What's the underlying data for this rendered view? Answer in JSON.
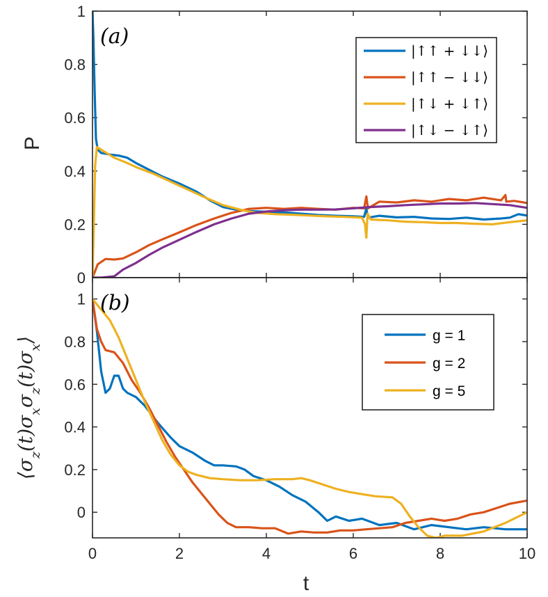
{
  "figure": {
    "x_axis_label": "t",
    "colors": {
      "blue": "#0072BD",
      "orange": "#D95319",
      "yellow": "#EDB120",
      "purple": "#7E2F8E",
      "axis": "#262626"
    }
  },
  "chart_data": [
    {
      "type": "line",
      "panel_tag": "(a)",
      "title": "",
      "xlabel": "t",
      "ylabel": "P",
      "xlim": [
        0,
        10
      ],
      "ylim": [
        0,
        1
      ],
      "x_ticks": [
        "0",
        "2",
        "4",
        "6",
        "8",
        "10"
      ],
      "y_ticks": [
        "0",
        "0.2",
        "0.4",
        "0.6",
        "0.8",
        "1"
      ],
      "legend_position": "top-right",
      "series": [
        {
          "name": "|↑↑ + ↓↓⟩",
          "color": "#0072BD",
          "points": [
            [
              0,
              1.0
            ],
            [
              0.02,
              0.9
            ],
            [
              0.05,
              0.7
            ],
            [
              0.08,
              0.52
            ],
            [
              0.12,
              0.48
            ],
            [
              0.2,
              0.468
            ],
            [
              0.4,
              0.462
            ],
            [
              0.6,
              0.458
            ],
            [
              0.8,
              0.45
            ],
            [
              1.0,
              0.43
            ],
            [
              1.3,
              0.405
            ],
            [
              1.6,
              0.38
            ],
            [
              2.0,
              0.353
            ],
            [
              2.4,
              0.322
            ],
            [
              2.7,
              0.29
            ],
            [
              3.0,
              0.265
            ],
            [
              3.3,
              0.255
            ],
            [
              3.6,
              0.25
            ],
            [
              4.0,
              0.247
            ],
            [
              4.4,
              0.245
            ],
            [
              4.8,
              0.24
            ],
            [
              5.2,
              0.235
            ],
            [
              5.6,
              0.232
            ],
            [
              6.0,
              0.23
            ],
            [
              6.25,
              0.228
            ],
            [
              6.3,
              0.26
            ],
            [
              6.32,
              0.24
            ],
            [
              6.34,
              0.225
            ],
            [
              6.6,
              0.232
            ],
            [
              7.0,
              0.226
            ],
            [
              7.4,
              0.228
            ],
            [
              7.8,
              0.222
            ],
            [
              8.2,
              0.22
            ],
            [
              8.6,
              0.225
            ],
            [
              9.0,
              0.218
            ],
            [
              9.4,
              0.222
            ],
            [
              9.6,
              0.225
            ],
            [
              9.8,
              0.238
            ],
            [
              10.0,
              0.233
            ]
          ]
        },
        {
          "name": "|↑↑ − ↓↓⟩",
          "color": "#D95319",
          "points": [
            [
              0,
              0.0
            ],
            [
              0.05,
              0.02
            ],
            [
              0.12,
              0.05
            ],
            [
              0.3,
              0.07
            ],
            [
              0.5,
              0.068
            ],
            [
              0.7,
              0.072
            ],
            [
              1.0,
              0.095
            ],
            [
              1.3,
              0.122
            ],
            [
              1.6,
              0.143
            ],
            [
              2.0,
              0.17
            ],
            [
              2.4,
              0.198
            ],
            [
              2.8,
              0.222
            ],
            [
              3.2,
              0.243
            ],
            [
              3.6,
              0.258
            ],
            [
              4.0,
              0.262
            ],
            [
              4.4,
              0.258
            ],
            [
              4.8,
              0.262
            ],
            [
              5.2,
              0.258
            ],
            [
              5.6,
              0.255
            ],
            [
              6.0,
              0.262
            ],
            [
              6.25,
              0.26
            ],
            [
              6.3,
              0.305
            ],
            [
              6.32,
              0.28
            ],
            [
              6.34,
              0.26
            ],
            [
              6.6,
              0.285
            ],
            [
              7.0,
              0.282
            ],
            [
              7.4,
              0.29
            ],
            [
              7.8,
              0.285
            ],
            [
              8.2,
              0.295
            ],
            [
              8.6,
              0.29
            ],
            [
              9.0,
              0.3
            ],
            [
              9.4,
              0.29
            ],
            [
              9.5,
              0.31
            ],
            [
              9.52,
              0.285
            ],
            [
              9.7,
              0.288
            ],
            [
              10.0,
              0.28
            ]
          ]
        },
        {
          "name": "|↑↓ + ↓↑⟩",
          "color": "#EDB120",
          "points": [
            [
              0,
              0.0
            ],
            [
              0.03,
              0.2
            ],
            [
              0.06,
              0.42
            ],
            [
              0.1,
              0.49
            ],
            [
              0.15,
              0.485
            ],
            [
              0.3,
              0.47
            ],
            [
              0.5,
              0.45
            ],
            [
              0.8,
              0.43
            ],
            [
              1.0,
              0.415
            ],
            [
              1.4,
              0.39
            ],
            [
              1.8,
              0.36
            ],
            [
              2.2,
              0.33
            ],
            [
              2.6,
              0.3
            ],
            [
              3.0,
              0.272
            ],
            [
              3.4,
              0.255
            ],
            [
              3.6,
              0.248
            ],
            [
              3.8,
              0.243
            ],
            [
              4.2,
              0.238
            ],
            [
              4.6,
              0.236
            ],
            [
              5.0,
              0.233
            ],
            [
              5.4,
              0.23
            ],
            [
              5.8,
              0.228
            ],
            [
              6.2,
              0.225
            ],
            [
              6.27,
              0.2
            ],
            [
              6.3,
              0.15
            ],
            [
              6.33,
              0.24
            ],
            [
              6.4,
              0.218
            ],
            [
              6.8,
              0.215
            ],
            [
              7.2,
              0.21
            ],
            [
              7.6,
              0.208
            ],
            [
              8.0,
              0.205
            ],
            [
              8.4,
              0.205
            ],
            [
              8.8,
              0.202
            ],
            [
              9.2,
              0.2
            ],
            [
              9.6,
              0.208
            ],
            [
              10.0,
              0.215
            ]
          ]
        },
        {
          "name": "|↑↓ − ↓↑⟩",
          "color": "#7E2F8E",
          "points": [
            [
              0,
              0.0
            ],
            [
              0.2,
              0.0
            ],
            [
              0.5,
              0.005
            ],
            [
              0.7,
              0.03
            ],
            [
              1.0,
              0.055
            ],
            [
              1.3,
              0.085
            ],
            [
              1.6,
              0.112
            ],
            [
              2.0,
              0.142
            ],
            [
              2.4,
              0.172
            ],
            [
              2.8,
              0.2
            ],
            [
              3.2,
              0.222
            ],
            [
              3.6,
              0.24
            ],
            [
              4.0,
              0.248
            ],
            [
              4.4,
              0.253
            ],
            [
              4.8,
              0.255
            ],
            [
              5.2,
              0.255
            ],
            [
              5.6,
              0.256
            ],
            [
              6.0,
              0.26
            ],
            [
              6.4,
              0.265
            ],
            [
              6.8,
              0.268
            ],
            [
              7.2,
              0.272
            ],
            [
              7.6,
              0.275
            ],
            [
              8.0,
              0.278
            ],
            [
              8.4,
              0.278
            ],
            [
              8.8,
              0.28
            ],
            [
              9.2,
              0.276
            ],
            [
              9.6,
              0.272
            ],
            [
              10.0,
              0.262
            ]
          ]
        }
      ]
    },
    {
      "type": "line",
      "panel_tag": "(b)",
      "title": "",
      "xlabel": "t",
      "ylabel": "⟨σz(t)σxσz(t)σx⟩",
      "xlim": [
        0,
        10
      ],
      "ylim": [
        -0.12,
        1.1
      ],
      "x_ticks": [
        "0",
        "2",
        "4",
        "6",
        "8",
        "10"
      ],
      "y_ticks": [
        "0",
        "0.2",
        "0.4",
        "0.6",
        "0.8",
        "1"
      ],
      "legend_position": "top-right",
      "series": [
        {
          "name": "g = 1",
          "color": "#0072BD",
          "points": [
            [
              0,
              1.0
            ],
            [
              0.1,
              0.85
            ],
            [
              0.2,
              0.66
            ],
            [
              0.3,
              0.56
            ],
            [
              0.4,
              0.58
            ],
            [
              0.5,
              0.64
            ],
            [
              0.6,
              0.64
            ],
            [
              0.7,
              0.58
            ],
            [
              0.8,
              0.56
            ],
            [
              1.0,
              0.54
            ],
            [
              1.2,
              0.5
            ],
            [
              1.5,
              0.42
            ],
            [
              1.8,
              0.35
            ],
            [
              2.0,
              0.31
            ],
            [
              2.3,
              0.28
            ],
            [
              2.6,
              0.24
            ],
            [
              2.8,
              0.22
            ],
            [
              3.0,
              0.22
            ],
            [
              3.3,
              0.215
            ],
            [
              3.5,
              0.2
            ],
            [
              3.7,
              0.17
            ],
            [
              4.0,
              0.15
            ],
            [
              4.3,
              0.12
            ],
            [
              4.6,
              0.08
            ],
            [
              4.9,
              0.05
            ],
            [
              5.2,
              0.0
            ],
            [
              5.4,
              -0.04
            ],
            [
              5.6,
              -0.02
            ],
            [
              5.9,
              -0.04
            ],
            [
              6.2,
              -0.03
            ],
            [
              6.6,
              -0.06
            ],
            [
              7.0,
              -0.05
            ],
            [
              7.4,
              -0.08
            ],
            [
              7.8,
              -0.06
            ],
            [
              8.2,
              -0.07
            ],
            [
              8.6,
              -0.08
            ],
            [
              9.0,
              -0.07
            ],
            [
              9.5,
              -0.08
            ],
            [
              10.0,
              -0.08
            ]
          ]
        },
        {
          "name": "g = 2",
          "color": "#D95319",
          "points": [
            [
              0,
              1.0
            ],
            [
              0.1,
              0.86
            ],
            [
              0.2,
              0.8
            ],
            [
              0.3,
              0.76
            ],
            [
              0.5,
              0.75
            ],
            [
              0.7,
              0.7
            ],
            [
              0.9,
              0.62
            ],
            [
              1.1,
              0.56
            ],
            [
              1.3,
              0.49
            ],
            [
              1.5,
              0.41
            ],
            [
              1.7,
              0.33
            ],
            [
              1.9,
              0.26
            ],
            [
              2.1,
              0.2
            ],
            [
              2.3,
              0.14
            ],
            [
              2.5,
              0.09
            ],
            [
              2.7,
              0.04
            ],
            [
              2.9,
              -0.01
            ],
            [
              3.1,
              -0.05
            ],
            [
              3.3,
              -0.07
            ],
            [
              3.6,
              -0.07
            ],
            [
              3.9,
              -0.075
            ],
            [
              4.2,
              -0.075
            ],
            [
              4.5,
              -0.1
            ],
            [
              4.8,
              -0.09
            ],
            [
              5.1,
              -0.095
            ],
            [
              5.4,
              -0.095
            ],
            [
              5.7,
              -0.085
            ],
            [
              6.0,
              -0.085
            ],
            [
              6.3,
              -0.08
            ],
            [
              6.6,
              -0.075
            ],
            [
              6.9,
              -0.07
            ],
            [
              7.2,
              -0.05
            ],
            [
              7.5,
              -0.04
            ],
            [
              7.8,
              -0.03
            ],
            [
              8.1,
              -0.04
            ],
            [
              8.4,
              -0.03
            ],
            [
              8.7,
              -0.01
            ],
            [
              9.0,
              0.0
            ],
            [
              9.3,
              0.02
            ],
            [
              9.6,
              0.04
            ],
            [
              10.0,
              0.055
            ]
          ]
        },
        {
          "name": "g = 5",
          "color": "#EDB120",
          "points": [
            [
              0,
              1.0
            ],
            [
              0.2,
              0.95
            ],
            [
              0.4,
              0.9
            ],
            [
              0.6,
              0.82
            ],
            [
              0.8,
              0.72
            ],
            [
              1.0,
              0.62
            ],
            [
              1.2,
              0.52
            ],
            [
              1.4,
              0.43
            ],
            [
              1.6,
              0.34
            ],
            [
              1.8,
              0.27
            ],
            [
              2.0,
              0.22
            ],
            [
              2.2,
              0.19
            ],
            [
              2.4,
              0.175
            ],
            [
              2.7,
              0.16
            ],
            [
              3.0,
              0.155
            ],
            [
              3.4,
              0.15
            ],
            [
              3.8,
              0.15
            ],
            [
              4.2,
              0.155
            ],
            [
              4.6,
              0.155
            ],
            [
              4.8,
              0.16
            ],
            [
              5.0,
              0.15
            ],
            [
              5.3,
              0.13
            ],
            [
              5.6,
              0.11
            ],
            [
              5.9,
              0.095
            ],
            [
              6.2,
              0.085
            ],
            [
              6.5,
              0.075
            ],
            [
              6.9,
              0.07
            ],
            [
              7.1,
              0.04
            ],
            [
              7.3,
              -0.02
            ],
            [
              7.5,
              -0.07
            ],
            [
              7.7,
              -0.11
            ],
            [
              7.9,
              -0.12
            ],
            [
              8.1,
              -0.11
            ],
            [
              8.5,
              -0.11
            ],
            [
              9.0,
              -0.09
            ],
            [
              9.5,
              -0.05
            ],
            [
              10.0,
              0.0
            ]
          ]
        }
      ]
    }
  ]
}
